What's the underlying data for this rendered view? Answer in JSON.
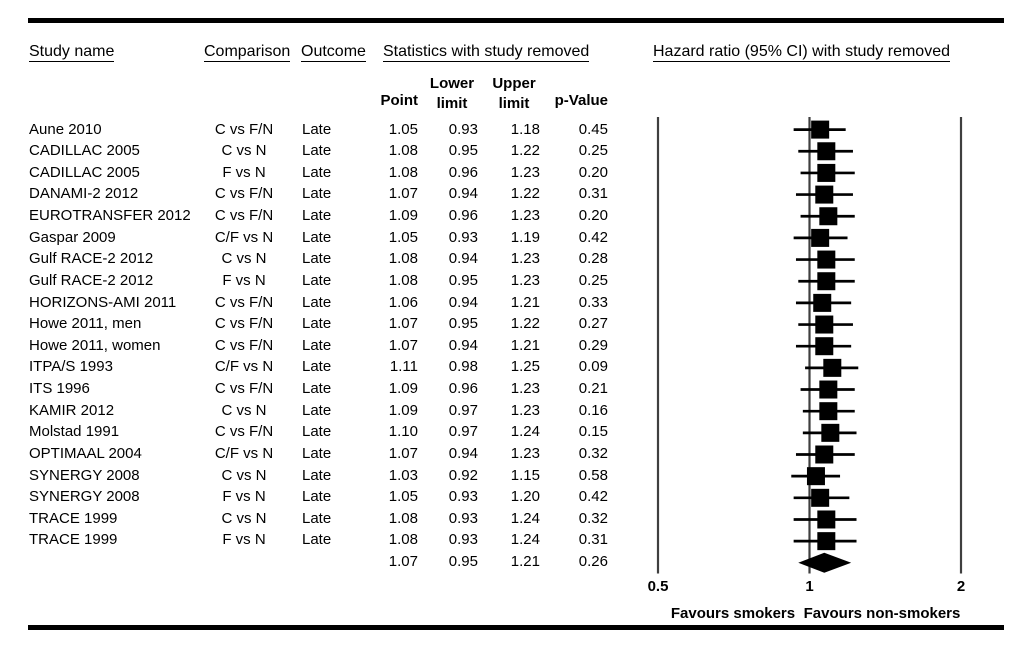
{
  "figure": {
    "headers": {
      "study": "Study name",
      "comparison": "Comparison",
      "outcome": "Outcome",
      "stats_group": "Statistics with study removed"
    },
    "stat_columns": {
      "point": "Point",
      "lower": "Lower limit",
      "upper": "Upper limit",
      "p": "p-Value"
    }
  },
  "chart_data": {
    "type": "forest",
    "title": "Hazard ratio (95% CI) with study removed",
    "x_scale": "log",
    "xlim": [
      0.5,
      2
    ],
    "x_ticks": [
      0.5,
      1,
      2
    ],
    "x_tick_labels": [
      "0.5",
      "1",
      "2"
    ],
    "footer_left": "Favours smokers",
    "footer_right": "Favours non-smokers",
    "colors": {
      "marker": "#000000",
      "grid_line": "#3f3f3f",
      "rule": "#000000"
    },
    "rows": [
      {
        "study": "Aune 2010",
        "comparison": "C vs F/N",
        "outcome": "Late",
        "point": "1.05",
        "lower": "0.93",
        "upper": "1.18",
        "p": "0.45"
      },
      {
        "study": "CADILLAC 2005",
        "comparison": "C vs N",
        "outcome": "Late",
        "point": "1.08",
        "lower": "0.95",
        "upper": "1.22",
        "p": "0.25"
      },
      {
        "study": "CADILLAC 2005",
        "comparison": "F vs N",
        "outcome": "Late",
        "point": "1.08",
        "lower": "0.96",
        "upper": "1.23",
        "p": "0.20"
      },
      {
        "study": "DANAMI-2 2012",
        "comparison": "C vs F/N",
        "outcome": "Late",
        "point": "1.07",
        "lower": "0.94",
        "upper": "1.22",
        "p": "0.31"
      },
      {
        "study": "EUROTRANSFER 2012",
        "comparison": "C vs F/N",
        "outcome": "Late",
        "point": "1.09",
        "lower": "0.96",
        "upper": "1.23",
        "p": "0.20"
      },
      {
        "study": "Gaspar 2009",
        "comparison": "C/F vs N",
        "outcome": "Late",
        "point": "1.05",
        "lower": "0.93",
        "upper": "1.19",
        "p": "0.42"
      },
      {
        "study": "Gulf RACE-2 2012",
        "comparison": "C vs N",
        "outcome": "Late",
        "point": "1.08",
        "lower": "0.94",
        "upper": "1.23",
        "p": "0.28"
      },
      {
        "study": "Gulf RACE-2 2012",
        "comparison": "F vs N",
        "outcome": "Late",
        "point": "1.08",
        "lower": "0.95",
        "upper": "1.23",
        "p": "0.25"
      },
      {
        "study": "HORIZONS-AMI 2011",
        "comparison": "C vs F/N",
        "outcome": "Late",
        "point": "1.06",
        "lower": "0.94",
        "upper": "1.21",
        "p": "0.33"
      },
      {
        "study": "Howe 2011, men",
        "comparison": "C vs F/N",
        "outcome": "Late",
        "point": "1.07",
        "lower": "0.95",
        "upper": "1.22",
        "p": "0.27"
      },
      {
        "study": "Howe 2011, women",
        "comparison": "C vs F/N",
        "outcome": "Late",
        "point": "1.07",
        "lower": "0.94",
        "upper": "1.21",
        "p": "0.29"
      },
      {
        "study": "ITPA/S 1993",
        "comparison": "C/F vs N",
        "outcome": "Late",
        "point": "1.11",
        "lower": "0.98",
        "upper": "1.25",
        "p": "0.09"
      },
      {
        "study": "ITS 1996",
        "comparison": "C vs F/N",
        "outcome": "Late",
        "point": "1.09",
        "lower": "0.96",
        "upper": "1.23",
        "p": "0.21"
      },
      {
        "study": "KAMIR 2012",
        "comparison": "C vs N",
        "outcome": "Late",
        "point": "1.09",
        "lower": "0.97",
        "upper": "1.23",
        "p": "0.16"
      },
      {
        "study": "Molstad 1991",
        "comparison": "C vs F/N",
        "outcome": "Late",
        "point": "1.10",
        "lower": "0.97",
        "upper": "1.24",
        "p": "0.15"
      },
      {
        "study": "OPTIMAAL 2004",
        "comparison": "C/F vs N",
        "outcome": "Late",
        "point": "1.07",
        "lower": "0.94",
        "upper": "1.23",
        "p": "0.32"
      },
      {
        "study": "SYNERGY 2008",
        "comparison": "C vs N",
        "outcome": "Late",
        "point": "1.03",
        "lower": "0.92",
        "upper": "1.15",
        "p": "0.58"
      },
      {
        "study": "SYNERGY 2008",
        "comparison": "F vs N",
        "outcome": "Late",
        "point": "1.05",
        "lower": "0.93",
        "upper": "1.20",
        "p": "0.42"
      },
      {
        "study": "TRACE 1999",
        "comparison": "C vs N",
        "outcome": "Late",
        "point": "1.08",
        "lower": "0.93",
        "upper": "1.24",
        "p": "0.32"
      },
      {
        "study": "TRACE 1999",
        "comparison": "F vs N",
        "outcome": "Late",
        "point": "1.08",
        "lower": "0.93",
        "upper": "1.24",
        "p": "0.31"
      }
    ],
    "overall": {
      "point": "1.07",
      "lower": "0.95",
      "upper": "1.21",
      "p": "0.26"
    }
  }
}
